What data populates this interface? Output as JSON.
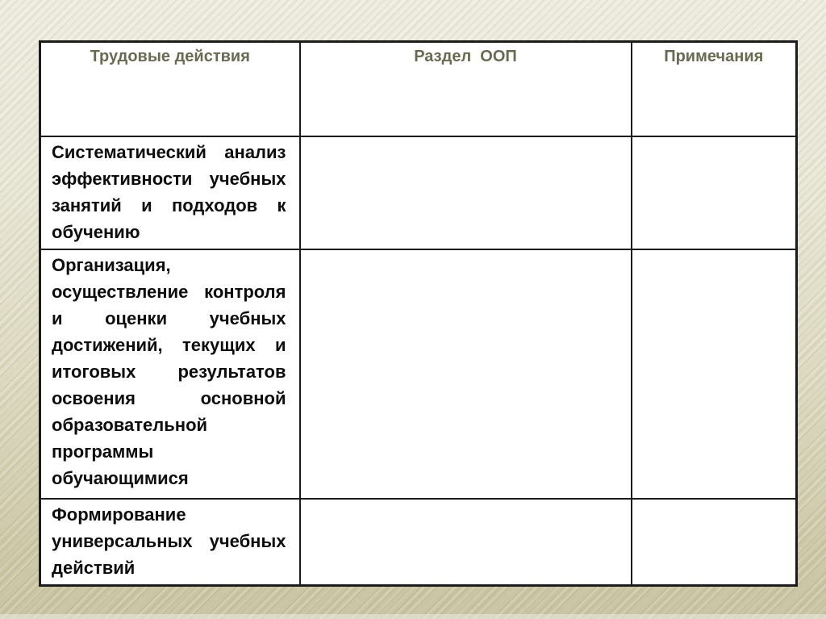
{
  "table": {
    "headers": [
      {
        "id": "labor-actions",
        "label": "Трудовые действия"
      },
      {
        "id": "oop-section",
        "label": "Раздел  ООП"
      },
      {
        "id": "notes",
        "label": "Примечания"
      }
    ],
    "rows": [
      {
        "action": "Систематический анализ эффективности учебных занятий и подходов к обучению",
        "oop_section": "",
        "notes": ""
      },
      {
        "action": "Организация, осуществление контроля и оценки учебных достижений, текущих и итоговых результатов освоения основной образовательной программы обучающимися",
        "oop_section": "",
        "notes": ""
      },
      {
        "action": "Формирование универсальных учебных действий",
        "oop_section": "",
        "notes": ""
      }
    ]
  },
  "colors": {
    "background_top": "#edecdf",
    "background_bottom": "#c9c5a3",
    "cell_background": "#ffffff",
    "table_border": "#1c1c1c",
    "header_text": "#6a6a52",
    "body_text": "#0d0d0d"
  }
}
